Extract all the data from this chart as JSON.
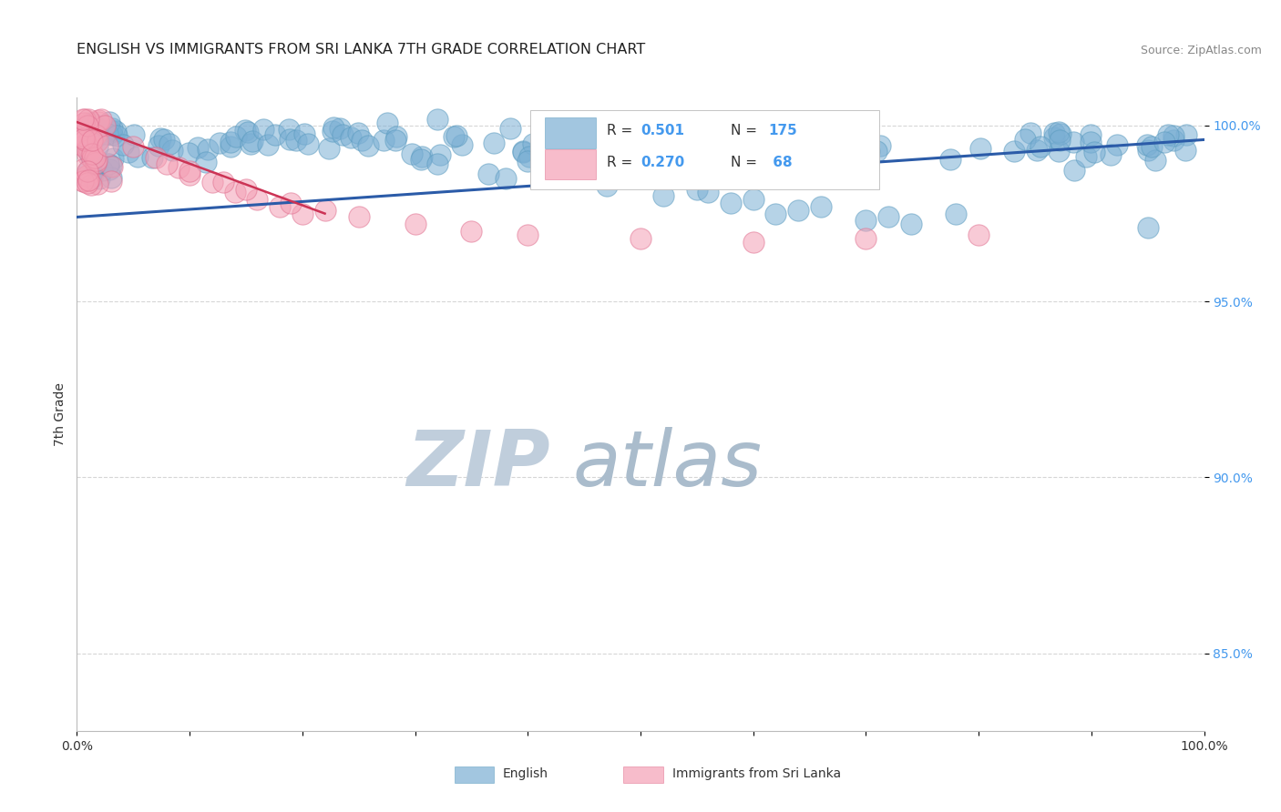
{
  "title": "ENGLISH VS IMMIGRANTS FROM SRI LANKA 7TH GRADE CORRELATION CHART",
  "source_text": "Source: ZipAtlas.com",
  "ylabel": "7th Grade",
  "xlim": [
    0.0,
    1.0
  ],
  "ylim": [
    0.828,
    1.008
  ],
  "yticks": [
    0.85,
    0.9,
    0.95,
    1.0
  ],
  "ytick_labels": [
    "85.0%",
    "90.0%",
    "95.0%",
    "100.0%"
  ],
  "english_color": "#7BAFD4",
  "english_edge_color": "#5A9BBF",
  "srilanka_color": "#F4A0B5",
  "srilanka_edge_color": "#E07090",
  "trendline_english_color": "#2B5BA8",
  "trendline_srilanka_color": "#CC3355",
  "watermark_zip_color": "#C8D8E8",
  "watermark_atlas_color": "#AABCCC",
  "background_color": "#FFFFFF",
  "grid_color": "#CCCCCC",
  "tick_color": "#4499EE",
  "legend_r_color": "#4499EE",
  "legend_n_color": "#4499EE"
}
